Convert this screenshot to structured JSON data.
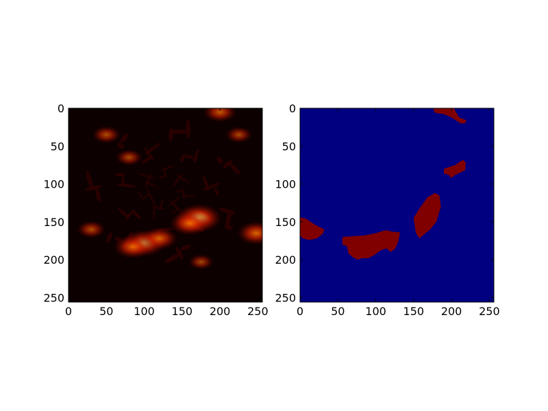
{
  "figure": {
    "background": "#ffffff"
  },
  "chart_data": [
    {
      "type": "heatmap",
      "title": "",
      "xlabel": "",
      "ylabel": "",
      "colormap": "hot",
      "image_shape": [
        256,
        256
      ],
      "xlim": [
        0,
        256
      ],
      "ylim": [
        256,
        0
      ],
      "xticks": [
        0,
        50,
        100,
        150,
        200,
        250
      ],
      "yticks": [
        0,
        50,
        100,
        150,
        200,
        250
      ],
      "grid": false,
      "colors": {
        "background": "#0d0000",
        "low": "#5a0000",
        "mid": "#c81e00",
        "high": "#ff7a00",
        "peak": "#ffe066"
      },
      "bright_regions": [
        {
          "x": 172,
          "y": 145,
          "intensity": 1.0
        },
        {
          "x": 160,
          "y": 152,
          "intensity": 0.8
        },
        {
          "x": 100,
          "y": 178,
          "intensity": 0.9
        },
        {
          "x": 85,
          "y": 183,
          "intensity": 0.75
        },
        {
          "x": 120,
          "y": 172,
          "intensity": 0.7
        },
        {
          "x": 248,
          "y": 165,
          "intensity": 0.75
        },
        {
          "x": 200,
          "y": 5,
          "intensity": 0.6
        },
        {
          "x": 30,
          "y": 160,
          "intensity": 0.45
        },
        {
          "x": 50,
          "y": 35,
          "intensity": 0.45
        },
        {
          "x": 80,
          "y": 65,
          "intensity": 0.4
        },
        {
          "x": 225,
          "y": 35,
          "intensity": 0.4
        },
        {
          "x": 175,
          "y": 203,
          "intensity": 0.35
        }
      ]
    },
    {
      "type": "heatmap",
      "title": "",
      "xlabel": "",
      "ylabel": "",
      "colormap": "jet",
      "image_shape": [
        256,
        256
      ],
      "xlim": [
        0,
        256
      ],
      "ylim": [
        256,
        0
      ],
      "xticks": [
        0,
        50,
        100,
        150,
        200,
        250
      ],
      "yticks": [
        0,
        50,
        100,
        150,
        200,
        250
      ],
      "grid": false,
      "colors": {
        "background": "#000080",
        "region": "#800000"
      },
      "regions": [
        {
          "name": "region-top-right",
          "points": [
            [
              176,
              0
            ],
            [
              203,
              0
            ],
            [
              210,
              12
            ],
            [
              220,
              16
            ],
            [
              218,
              20
            ],
            [
              212,
              20
            ],
            [
              200,
              12
            ],
            [
              190,
              8
            ],
            [
              178,
              6
            ]
          ]
        },
        {
          "name": "region-right-middle",
          "points": [
            [
              190,
              80
            ],
            [
              205,
              75
            ],
            [
              215,
              68
            ],
            [
              219,
              72
            ],
            [
              218,
              82
            ],
            [
              205,
              88
            ],
            [
              200,
              92
            ],
            [
              196,
              88
            ],
            [
              190,
              86
            ]
          ]
        },
        {
          "name": "region-center-right",
          "points": [
            [
              150,
              145
            ],
            [
              158,
              132
            ],
            [
              168,
              118
            ],
            [
              178,
              112
            ],
            [
              184,
              115
            ],
            [
              186,
              130
            ],
            [
              180,
              150
            ],
            [
              172,
              160
            ],
            [
              162,
              168
            ],
            [
              158,
              172
            ],
            [
              153,
              165
            ]
          ]
        },
        {
          "name": "region-left-edge",
          "points": [
            [
              0,
              144
            ],
            [
              8,
              146
            ],
            [
              20,
              154
            ],
            [
              32,
              160
            ],
            [
              30,
              166
            ],
            [
              22,
              172
            ],
            [
              12,
              174
            ],
            [
              4,
              172
            ],
            [
              0,
              168
            ]
          ]
        },
        {
          "name": "region-bottom-center",
          "points": [
            [
              56,
              170
            ],
            [
              70,
              169
            ],
            [
              85,
              168
            ],
            [
              100,
              165
            ],
            [
              113,
              161
            ],
            [
              122,
              163
            ],
            [
              132,
              164
            ],
            [
              130,
              175
            ],
            [
              126,
              185
            ],
            [
              120,
              190
            ],
            [
              114,
              185
            ],
            [
              106,
              188
            ],
            [
              98,
              194
            ],
            [
              90,
              198
            ],
            [
              82,
              198
            ],
            [
              76,
              200
            ],
            [
              70,
              197
            ],
            [
              64,
              192
            ],
            [
              62,
              182
            ],
            [
              56,
              180
            ]
          ]
        }
      ]
    }
  ]
}
